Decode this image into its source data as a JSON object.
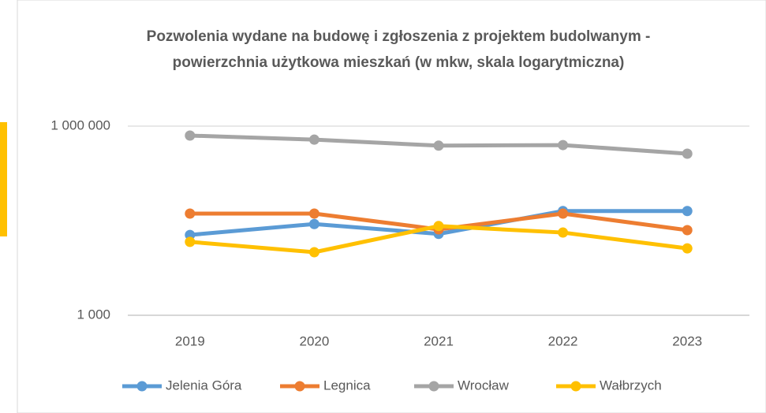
{
  "chart_data": {
    "type": "line",
    "title": "Pozwolenia wydane na budowę i zgłoszenia z projektem budolwanym - powierzchnia użytkowa mieszkań (w mkw, skala logarytmiczna)",
    "categories": [
      "2019",
      "2020",
      "2021",
      "2022",
      "2023"
    ],
    "series": [
      {
        "name": "Jelenia Góra",
        "color": "#5b9bd5",
        "values": [
          18800,
          28000,
          19500,
          45000,
          45000
        ]
      },
      {
        "name": "Legnica",
        "color": "#ed7d31",
        "values": [
          41000,
          41000,
          23000,
          41000,
          22400
        ]
      },
      {
        "name": "Wrocław",
        "color": "#a5a5a5",
        "values": [
          708000,
          610000,
          490000,
          500000,
          365000
        ]
      },
      {
        "name": "Wałbrzych",
        "color": "#ffc000",
        "values": [
          14600,
          10000,
          26000,
          20500,
          11500
        ]
      }
    ],
    "ylim": [
      1000,
      1000000
    ],
    "yticks": [
      {
        "value": 1000,
        "label": "1 000"
      },
      {
        "value": 1000000,
        "label": "1 000 000"
      }
    ],
    "log_scale": true,
    "grid": true,
    "legend": "bottom"
  }
}
